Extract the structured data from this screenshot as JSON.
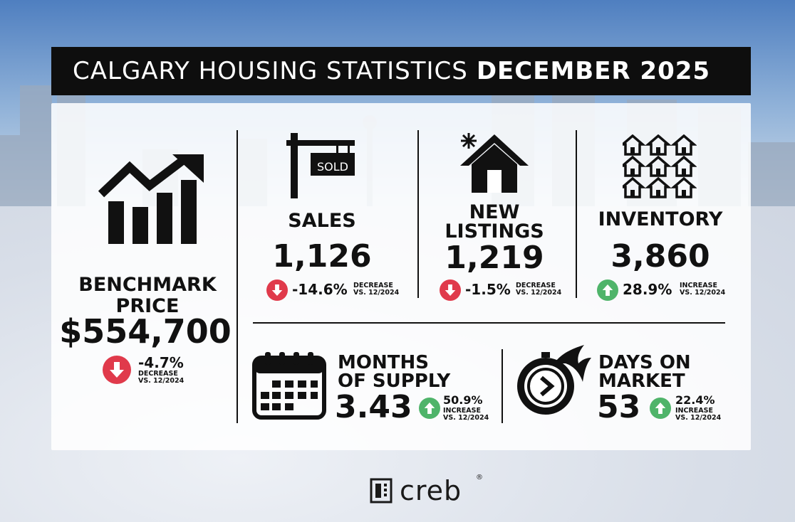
{
  "header": {
    "title_main": "CALGARY HOUSING STATISTICS",
    "title_period": "DECEMBER 2025"
  },
  "benchmark": {
    "label_line1": "BENCHMARK",
    "label_line2": "PRICE",
    "value": "$554,700",
    "change": "-4.7%",
    "change_word": "DECREASE",
    "compare": "VS. 12/2024",
    "direction": "down"
  },
  "sales": {
    "label": "SALES",
    "sign_text": "SOLD",
    "value": "1,126",
    "change": "-14.6%",
    "change_word": "DECREASE",
    "compare": "VS. 12/2024",
    "direction": "down"
  },
  "new_listings": {
    "label_line1": "NEW",
    "label_line2": "LISTINGS",
    "value": "1,219",
    "change": "-1.5%",
    "change_word": "DECREASE",
    "compare": "VS. 12/2024",
    "direction": "down"
  },
  "inventory": {
    "label": "INVENTORY",
    "value": "3,860",
    "change": "28.9%",
    "change_word": "INCREASE",
    "compare": "VS. 12/2024",
    "direction": "up"
  },
  "months_supply": {
    "label_line1": "MONTHS",
    "label_line2": "OF SUPPLY",
    "value": "3.43",
    "change": "50.9%",
    "change_word": "INCREASE",
    "compare": "VS. 12/2024",
    "direction": "up"
  },
  "days_on_market": {
    "label_line1": "DAYS ON",
    "label_line2": "MARKET",
    "value": "53",
    "change": "22.4%",
    "change_word": "INCREASE",
    "compare": "VS. 12/2024",
    "direction": "up"
  },
  "footer": {
    "logo_text": "creb",
    "logo_mark": "®"
  },
  "icons": {
    "benchmark": "bar-chart-trend-up-icon",
    "sales": "sold-sign-icon",
    "new_listings": "house-sparkle-icon",
    "inventory": "houses-grid-icon",
    "months_supply": "calendar-icon",
    "days_on_market": "stopwatch-fire-icon",
    "down": "arrow-down-icon",
    "up": "arrow-up-icon"
  },
  "colors": {
    "decrease": "#e03a4b",
    "increase": "#4fb46a",
    "header_bg": "#0e0e0e"
  }
}
